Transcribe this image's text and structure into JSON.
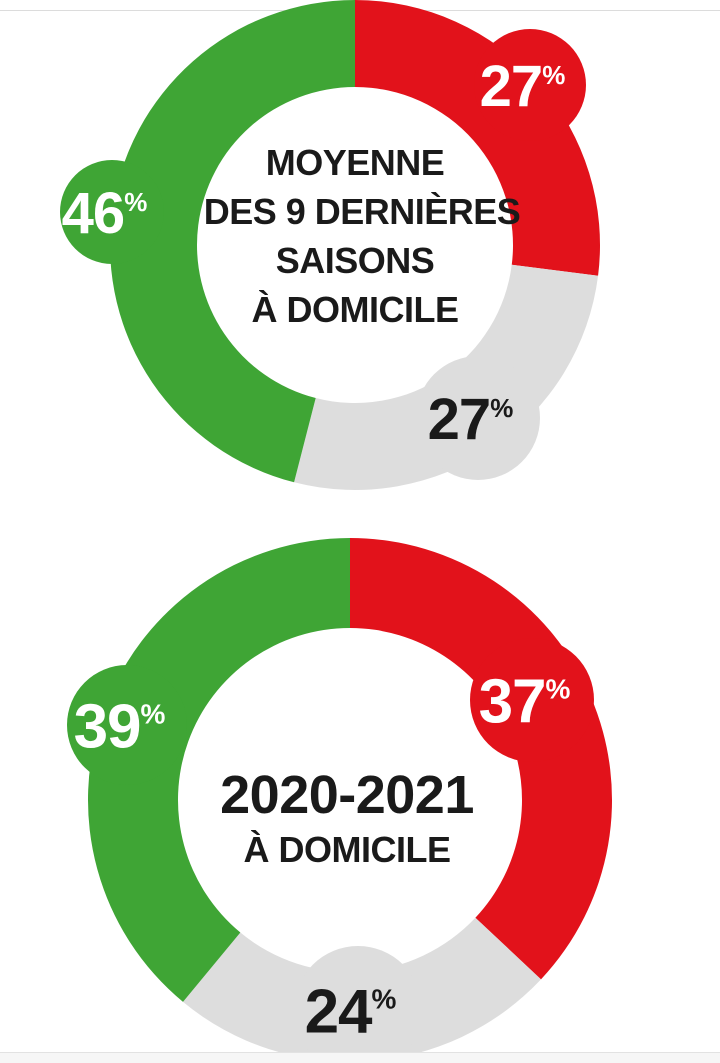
{
  "chart_data": [
    {
      "type": "pie",
      "variant": "donut",
      "title_lines": [
        "MOYENNE",
        "DES 9 DERNIÈRES",
        "SAISONS",
        "À DOMICILE"
      ],
      "categories": [
        "green",
        "red",
        "grey"
      ],
      "values": [
        46,
        27,
        27
      ],
      "labels": [
        "46",
        "27",
        "27"
      ],
      "unit": "%",
      "colors": [
        "#3fa535",
        "#e2121b",
        "#dddddd"
      ]
    },
    {
      "type": "pie",
      "variant": "donut",
      "title_lines": [
        "2020-2021",
        "À DOMICILE"
      ],
      "categories": [
        "green",
        "red",
        "grey"
      ],
      "values": [
        39,
        37,
        24
      ],
      "labels": [
        "39",
        "37",
        "24"
      ],
      "unit": "%",
      "colors": [
        "#3fa535",
        "#e2121b",
        "#dddddd"
      ]
    }
  ]
}
